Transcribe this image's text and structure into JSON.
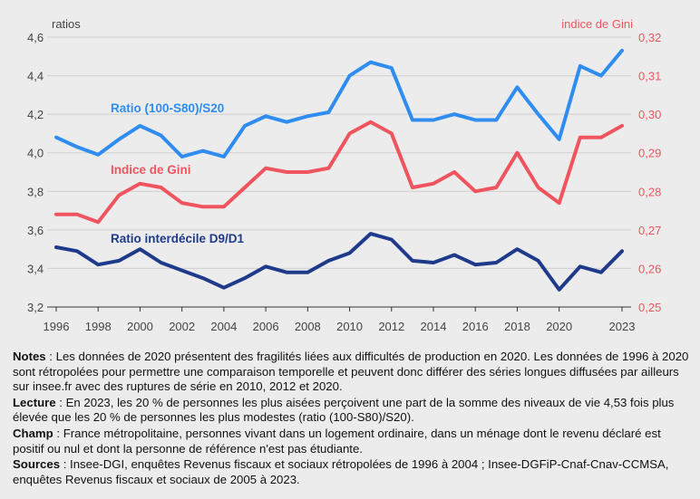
{
  "chart_data": {
    "type": "line",
    "x": [
      1996,
      1997,
      1998,
      1999,
      2000,
      2001,
      2002,
      2003,
      2004,
      2005,
      2006,
      2007,
      2008,
      2009,
      2010,
      2011,
      2012,
      2013,
      2014,
      2015,
      2016,
      2017,
      2018,
      2019,
      2020,
      2021,
      2022,
      2023
    ],
    "x_ticks": [
      "1996",
      "1998",
      "2000",
      "2002",
      "2004",
      "2006",
      "2008",
      "2010",
      "2012",
      "2014",
      "2016",
      "2018",
      "2020",
      "2023"
    ],
    "y_left": {
      "label": "ratios",
      "range": [
        3.2,
        4.6
      ],
      "ticks": [
        "3,2",
        "3,4",
        "3,6",
        "3,8",
        "4,0",
        "4,2",
        "4,4",
        "4,6"
      ]
    },
    "y_right": {
      "label": "indice de Gini",
      "range": [
        0.25,
        0.32
      ],
      "ticks": [
        "0,25",
        "0,26",
        "0,27",
        "0,28",
        "0,29",
        "0,30",
        "0,31",
        "0,32"
      ]
    },
    "grid": true,
    "series": [
      {
        "name": "Ratio (100-S80)/S20",
        "axis": "left",
        "color": "#2f8cf0",
        "values": [
          4.08,
          4.03,
          3.99,
          4.07,
          4.14,
          4.09,
          3.98,
          4.01,
          3.98,
          4.14,
          4.19,
          4.16,
          4.19,
          4.21,
          4.4,
          4.47,
          4.44,
          4.17,
          4.17,
          4.2,
          4.17,
          4.17,
          4.34,
          4.2,
          4.07,
          4.45,
          4.4,
          4.53
        ]
      },
      {
        "name": "Indice de Gini",
        "axis": "right",
        "color": "#f0545f",
        "values": [
          0.274,
          0.274,
          0.272,
          0.279,
          0.282,
          0.281,
          0.277,
          0.276,
          0.276,
          0.281,
          0.286,
          0.285,
          0.285,
          0.286,
          0.295,
          0.298,
          0.295,
          0.281,
          0.282,
          0.285,
          0.28,
          0.281,
          0.29,
          0.281,
          0.277,
          0.294,
          0.294,
          0.297
        ]
      },
      {
        "name": "Ratio interdécile D9/D1",
        "axis": "left",
        "color": "#1f3a8a",
        "values": [
          3.51,
          3.49,
          3.42,
          3.44,
          3.5,
          3.43,
          3.39,
          3.35,
          3.3,
          3.35,
          3.41,
          3.38,
          3.38,
          3.44,
          3.48,
          3.58,
          3.55,
          3.44,
          3.43,
          3.47,
          3.42,
          3.43,
          3.5,
          3.44,
          3.29,
          3.41,
          3.38,
          3.49
        ]
      }
    ]
  },
  "notes": {
    "notes_label": "Notes",
    "notes_text": " : Les données de 2020 présentent des fragilités liées aux difficultés de production en 2020. Les données de 1996 à 2020 sont rétropolées pour permettre une comparaison temporelle et peuvent donc différer des séries longues diffusées par ailleurs sur insee.fr avec des ruptures de série en 2010, 2012 et 2020.",
    "lecture_label": "Lecture",
    "lecture_text": " : En 2023, les 20 % de personnes les plus aisées perçoivent une part de la somme des niveaux de vie 4,53 fois plus élevée que les 20 % de personnes les plus modestes (ratio (100-S80)/S20).",
    "champ_label": "Champ",
    "champ_text": " : France métropolitaine, personnes vivant dans un logement ordinaire, dans un ménage dont le revenu déclaré est positif ou nul et dont la personne de référence n'est pas étudiante.",
    "sources_label": "Sources",
    "sources_text": " : Insee-DGI, enquêtes Revenus fiscaux et sociaux rétropolées de 1996 à 2004 ; Insee-DGFiP-Cnaf-Cnav-CCMSA, enquêtes Revenus fiscaux et sociaux de 2005 à 2023."
  }
}
